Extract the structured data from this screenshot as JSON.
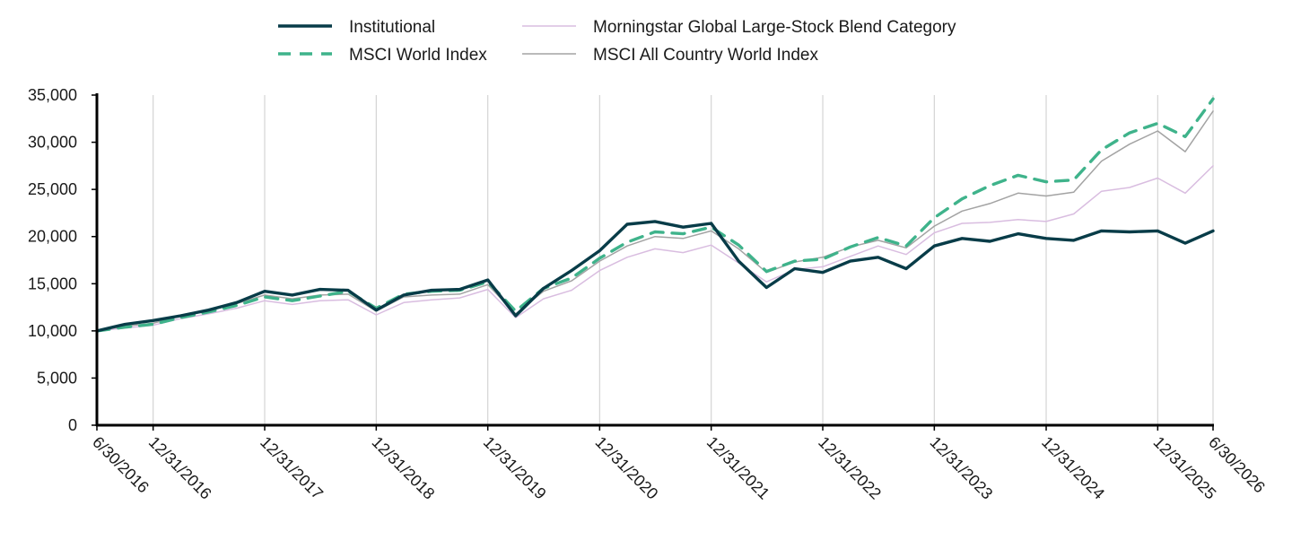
{
  "chart_data": {
    "type": "line",
    "title": "",
    "xlabel": "",
    "ylabel": "",
    "ylim": [
      0,
      35000
    ],
    "y_ticks": [
      0,
      5000,
      10000,
      15000,
      20000,
      25000,
      30000,
      35000
    ],
    "y_tick_labels": [
      "0",
      "5,000",
      "10,000",
      "15,000",
      "20,000",
      "25,000",
      "30,000",
      "35,000"
    ],
    "x_ticks": [
      "6/30/2016",
      "12/31/2016",
      "12/31/2017",
      "12/31/2018",
      "12/31/2019",
      "12/31/2020",
      "12/31/2021",
      "12/31/2022",
      "12/31/2023",
      "12/31/2024",
      "12/31/2025",
      "6/30/2026"
    ],
    "x_tick_labels": [
      "6/30/2016",
      "12/31/2016",
      "12/31/2017",
      "12/31/2018",
      "12/31/2019",
      "12/31/2020",
      "12/31/2021",
      "12/31/2022",
      "12/31/2023",
      "12/31/2024",
      "12/31/2025",
      "6/30/2026"
    ],
    "x_range": [
      "6/30/2016",
      "6/30/2026"
    ],
    "grid": "vertical",
    "legend_position": "top",
    "series": [
      {
        "name": "Institutional",
        "color": "#083c48",
        "style": "solid-thick",
        "x": [
          "6/30/2016",
          "9/30/2016",
          "12/31/2016",
          "3/31/2017",
          "6/30/2017",
          "9/30/2017",
          "12/31/2017",
          "3/31/2018",
          "6/30/2018",
          "9/30/2018",
          "12/31/2018",
          "3/31/2019",
          "6/30/2019",
          "9/30/2019",
          "12/31/2019",
          "3/31/2020",
          "6/30/2020",
          "9/30/2020",
          "12/31/2020",
          "3/31/2021",
          "6/30/2021",
          "9/30/2021",
          "12/31/2021",
          "3/31/2022",
          "6/30/2022",
          "9/30/2022",
          "12/31/2022",
          "3/31/2023",
          "6/30/2023",
          "9/30/2023",
          "12/31/2023",
          "3/31/2024",
          "6/30/2024",
          "9/30/2024",
          "12/31/2024",
          "3/31/2025",
          "6/30/2025",
          "9/30/2025",
          "12/31/2025",
          "3/31/2026",
          "6/30/2026"
        ],
        "values": [
          10000,
          10700,
          11100,
          11600,
          12200,
          13000,
          14200,
          13800,
          14400,
          14300,
          12200,
          13800,
          14300,
          14400,
          15400,
          11600,
          14500,
          16400,
          18500,
          21300,
          21600,
          21000,
          21400,
          17400,
          14600,
          16600,
          16200,
          17400,
          17800,
          16600,
          19000,
          19800,
          19500,
          20300,
          19800,
          19600,
          20600,
          20500,
          20600,
          19300,
          20600
        ]
      },
      {
        "name": "MSCI World Index",
        "color": "#3fb38b",
        "style": "dashed",
        "x": [
          "6/30/2016",
          "9/30/2016",
          "12/31/2016",
          "3/31/2017",
          "6/30/2017",
          "9/30/2017",
          "12/31/2017",
          "3/31/2018",
          "6/30/2018",
          "9/30/2018",
          "12/31/2018",
          "3/31/2019",
          "6/30/2019",
          "9/30/2019",
          "12/31/2019",
          "3/31/2020",
          "6/30/2020",
          "9/30/2020",
          "12/31/2020",
          "3/31/2021",
          "6/30/2021",
          "9/30/2021",
          "12/31/2021",
          "3/31/2022",
          "6/30/2022",
          "9/30/2022",
          "12/31/2022",
          "3/31/2023",
          "6/30/2023",
          "9/30/2023",
          "12/31/2023",
          "3/31/2024",
          "6/30/2024",
          "9/30/2024",
          "12/31/2024",
          "3/31/2025",
          "6/30/2025",
          "9/30/2025",
          "12/31/2025",
          "3/31/2026",
          "6/30/2026"
        ],
        "values": [
          10000,
          10400,
          10700,
          11400,
          12000,
          12700,
          13600,
          13200,
          13700,
          14200,
          12400,
          13900,
          14200,
          14300,
          15200,
          12100,
          14500,
          15600,
          17700,
          19400,
          20500,
          20300,
          21000,
          19100,
          16300,
          17400,
          17600,
          18900,
          19900,
          19000,
          22000,
          24000,
          25400,
          26500,
          25800,
          26000,
          29200,
          31000,
          32000,
          30600,
          34600
        ]
      },
      {
        "name": "Morningstar Global Large-Stock Blend Category",
        "color": "#d9bde0",
        "style": "solid-thin",
        "x": [
          "6/30/2016",
          "9/30/2016",
          "12/31/2016",
          "3/31/2017",
          "6/30/2017",
          "9/30/2017",
          "12/31/2017",
          "3/31/2018",
          "6/30/2018",
          "9/30/2018",
          "12/31/2018",
          "3/31/2019",
          "6/30/2019",
          "9/30/2019",
          "12/31/2019",
          "3/31/2020",
          "6/30/2020",
          "9/30/2020",
          "12/31/2020",
          "3/31/2021",
          "6/30/2021",
          "9/30/2021",
          "12/31/2021",
          "3/31/2022",
          "6/30/2022",
          "9/30/2022",
          "12/31/2022",
          "3/31/2023",
          "6/30/2023",
          "9/30/2023",
          "12/31/2023",
          "3/31/2024",
          "6/30/2024",
          "9/30/2024",
          "12/31/2024",
          "3/31/2025",
          "6/30/2025",
          "9/30/2025",
          "12/31/2025",
          "3/31/2026",
          "6/30/2026"
        ],
        "values": [
          10000,
          10300,
          10600,
          11300,
          11800,
          12400,
          13200,
          12800,
          13200,
          13300,
          11700,
          13000,
          13300,
          13500,
          14400,
          11400,
          13400,
          14300,
          16400,
          17800,
          18700,
          18300,
          19100,
          17200,
          15200,
          16500,
          16800,
          17900,
          19000,
          18100,
          20400,
          21400,
          21500,
          21800,
          21600,
          22400,
          24800,
          25200,
          26200,
          24600,
          27500
        ]
      },
      {
        "name": "MSCI All Country World Index",
        "color": "#a3a3a3",
        "style": "solid-thin",
        "x": [
          "6/30/2016",
          "9/30/2016",
          "12/31/2016",
          "3/31/2017",
          "6/30/2017",
          "9/30/2017",
          "12/31/2017",
          "3/31/2018",
          "6/30/2018",
          "9/30/2018",
          "12/31/2018",
          "3/31/2019",
          "6/30/2019",
          "9/30/2019",
          "12/31/2019",
          "3/31/2020",
          "6/30/2020",
          "9/30/2020",
          "12/31/2020",
          "3/31/2021",
          "6/30/2021",
          "9/30/2021",
          "12/31/2021",
          "3/31/2022",
          "6/30/2022",
          "9/30/2022",
          "12/31/2022",
          "3/31/2023",
          "6/30/2023",
          "9/30/2023",
          "12/31/2023",
          "3/31/2024",
          "6/30/2024",
          "9/30/2024",
          "12/31/2024",
          "3/31/2025",
          "6/30/2025",
          "9/30/2025",
          "12/31/2025",
          "3/31/2026",
          "6/30/2026"
        ],
        "values": [
          10000,
          10500,
          10800,
          11600,
          12200,
          12900,
          13800,
          13400,
          13800,
          13900,
          12100,
          13600,
          13800,
          13900,
          14900,
          11800,
          14200,
          15300,
          17400,
          19000,
          20000,
          19800,
          20600,
          18700,
          16200,
          17300,
          17800,
          18900,
          19600,
          18800,
          21100,
          22700,
          23500,
          24600,
          24300,
          24700,
          28000,
          29800,
          31200,
          29000,
          33300
        ]
      }
    ]
  }
}
